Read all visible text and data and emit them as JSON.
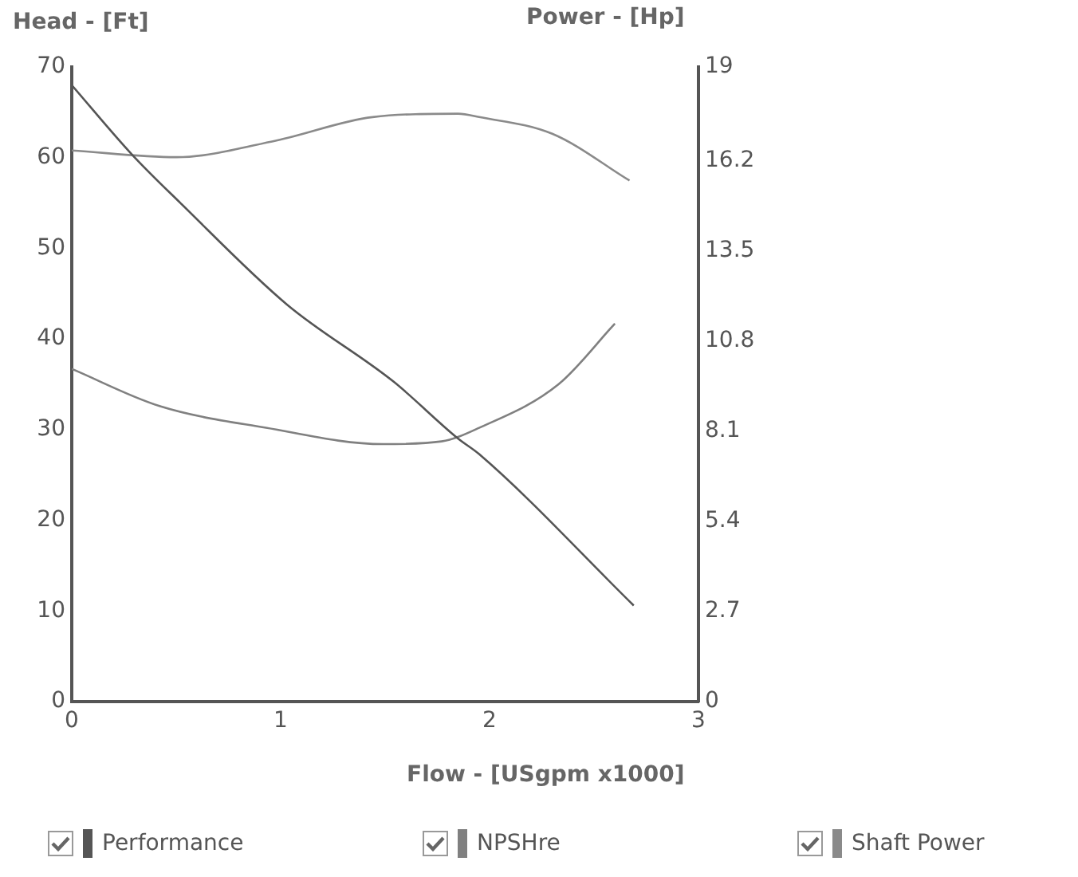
{
  "chart_data": {
    "type": "line",
    "xlabel": "Flow - [USgpm x1000]",
    "ylabel": "Head - [Ft]",
    "y2label": "Power - [Hp]",
    "xlim": [
      0,
      3
    ],
    "xticks": [
      0,
      1,
      2,
      3
    ],
    "ylim": [
      0,
      70
    ],
    "yticks": [
      0,
      10,
      20,
      30,
      40,
      50,
      60,
      70
    ],
    "y2lim": [
      0,
      19
    ],
    "y2ticks": [
      0,
      2.7,
      5.4,
      8.1,
      10.8,
      13.5,
      16.2,
      19
    ],
    "grid": false,
    "legend": "bottom",
    "marker": "none",
    "line_style": "solid",
    "series": [
      {
        "name": "Performance",
        "color": "#555555",
        "axis": "y",
        "x": [
          0,
          0.29,
          0.52,
          1.03,
          1.54,
          1.85,
          1.95,
          2.69
        ],
        "values": [
          68,
          60.3,
          55,
          43.8,
          35.3,
          29,
          27.3,
          10.6
        ]
      },
      {
        "name": "NPSHre",
        "color": "#808080",
        "axis": "y",
        "x": [
          0,
          0.42,
          0.93,
          1.49,
          1.77,
          1.95,
          2.33,
          2.6
        ],
        "values": [
          36.7,
          32.6,
          30.2,
          28.4,
          28.7,
          30.2,
          35,
          41.7
        ]
      },
      {
        "name": "Shaft Power",
        "color": "#8a8a8a",
        "axis": "y2",
        "x": [
          0,
          0.5,
          0.98,
          1.44,
          1.85,
          1.95,
          2.3,
          2.67
        ],
        "values": [
          16.5,
          16.3,
          16.8,
          17.5,
          17.6,
          17.5,
          17.0,
          15.6
        ]
      }
    ]
  }
}
